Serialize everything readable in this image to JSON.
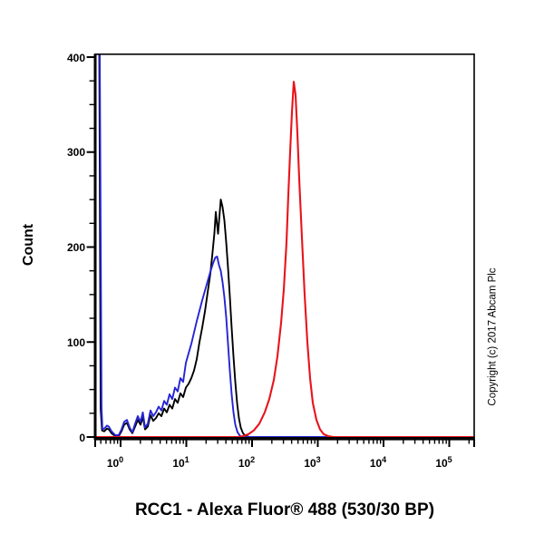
{
  "figure": {
    "title": "RCC1 - Alexa Fluor® 488 (530/30 BP)",
    "y_axis_label": "Count",
    "copyright": "Copyright (c) 2017 Abcam Plc"
  },
  "chart_data": {
    "type": "line",
    "subtype": "flow-cytometry-histogram",
    "title": "RCC1 - Alexa Fluor® 488 (530/30 BP)",
    "xlabel": "RCC1 - Alexa Fluor® 488 (530/30 BP)",
    "ylabel": "Count",
    "x_scale": "log10",
    "grid": false,
    "legend": false,
    "x_axis": {
      "tick_base": "10",
      "tick_exponents": [
        0,
        1,
        2,
        3,
        4,
        5
      ],
      "range_log10": [
        -0.386,
        5.379
      ]
    },
    "y_axis": {
      "ticks": [
        0,
        100,
        200,
        300,
        400
      ],
      "minor_step": 25,
      "range": [
        0,
        403
      ]
    },
    "series": [
      {
        "name": "black",
        "color": "#000000",
        "stroke_width": 1.9,
        "points_log10x_count": [
          [
            -0.324,
            410
          ],
          [
            -0.303,
            30
          ],
          [
            -0.283,
            7
          ],
          [
            -0.248,
            6
          ],
          [
            -0.207,
            9
          ],
          [
            -0.179,
            8
          ],
          [
            -0.138,
            4
          ],
          [
            -0.083,
            1
          ],
          [
            -0.028,
            1
          ],
          [
            0.014,
            6
          ],
          [
            0.055,
            13
          ],
          [
            0.097,
            15
          ],
          [
            0.138,
            8
          ],
          [
            0.179,
            4
          ],
          [
            0.221,
            11
          ],
          [
            0.262,
            18
          ],
          [
            0.303,
            13
          ],
          [
            0.338,
            21
          ],
          [
            0.372,
            8
          ],
          [
            0.414,
            11
          ],
          [
            0.455,
            23
          ],
          [
            0.497,
            17
          ],
          [
            0.538,
            20
          ],
          [
            0.579,
            25
          ],
          [
            0.621,
            22
          ],
          [
            0.662,
            30
          ],
          [
            0.703,
            26
          ],
          [
            0.745,
            34
          ],
          [
            0.786,
            30
          ],
          [
            0.828,
            40
          ],
          [
            0.869,
            36
          ],
          [
            0.91,
            46
          ],
          [
            0.952,
            42
          ],
          [
            0.993,
            52
          ],
          [
            1.034,
            56
          ],
          [
            1.076,
            62
          ],
          [
            1.117,
            70
          ],
          [
            1.159,
            82
          ],
          [
            1.2,
            100
          ],
          [
            1.241,
            115
          ],
          [
            1.283,
            132
          ],
          [
            1.324,
            152
          ],
          [
            1.366,
            172
          ],
          [
            1.4,
            195
          ],
          [
            1.428,
            215
          ],
          [
            1.448,
            237
          ],
          [
            1.483,
            214
          ],
          [
            1.524,
            250
          ],
          [
            1.552,
            242
          ],
          [
            1.579,
            228
          ],
          [
            1.607,
            205
          ],
          [
            1.634,
            178
          ],
          [
            1.662,
            148
          ],
          [
            1.69,
            115
          ],
          [
            1.717,
            85
          ],
          [
            1.745,
            58
          ],
          [
            1.772,
            36
          ],
          [
            1.8,
            20
          ],
          [
            1.828,
            10
          ],
          [
            1.862,
            4
          ],
          [
            1.903,
            1
          ],
          [
            1.972,
            0
          ],
          [
            5.379,
            0
          ]
        ]
      },
      {
        "name": "blue",
        "color": "#2424d6",
        "stroke_width": 1.9,
        "points_log10x_count": [
          [
            -0.317,
            410
          ],
          [
            -0.29,
            30
          ],
          [
            -0.276,
            8
          ],
          [
            -0.248,
            9
          ],
          [
            -0.207,
            12
          ],
          [
            -0.179,
            11
          ],
          [
            -0.138,
            6
          ],
          [
            -0.083,
            2
          ],
          [
            -0.028,
            2
          ],
          [
            0.014,
            8
          ],
          [
            0.055,
            16
          ],
          [
            0.097,
            18
          ],
          [
            0.138,
            10
          ],
          [
            0.179,
            5
          ],
          [
            0.221,
            14
          ],
          [
            0.262,
            22
          ],
          [
            0.303,
            16
          ],
          [
            0.338,
            26
          ],
          [
            0.372,
            10
          ],
          [
            0.414,
            14
          ],
          [
            0.455,
            28
          ],
          [
            0.497,
            22
          ],
          [
            0.538,
            26
          ],
          [
            0.579,
            32
          ],
          [
            0.621,
            28
          ],
          [
            0.662,
            38
          ],
          [
            0.703,
            34
          ],
          [
            0.745,
            45
          ],
          [
            0.786,
            40
          ],
          [
            0.828,
            52
          ],
          [
            0.869,
            48
          ],
          [
            0.91,
            62
          ],
          [
            0.952,
            58
          ],
          [
            0.993,
            78
          ],
          [
            1.034,
            88
          ],
          [
            1.076,
            98
          ],
          [
            1.117,
            110
          ],
          [
            1.159,
            122
          ],
          [
            1.2,
            133
          ],
          [
            1.241,
            144
          ],
          [
            1.283,
            154
          ],
          [
            1.324,
            164
          ],
          [
            1.366,
            174
          ],
          [
            1.407,
            183
          ],
          [
            1.441,
            189
          ],
          [
            1.469,
            190
          ],
          [
            1.497,
            181
          ],
          [
            1.524,
            175
          ],
          [
            1.552,
            163
          ],
          [
            1.579,
            147
          ],
          [
            1.607,
            126
          ],
          [
            1.634,
            98
          ],
          [
            1.662,
            70
          ],
          [
            1.69,
            45
          ],
          [
            1.717,
            26
          ],
          [
            1.745,
            13
          ],
          [
            1.779,
            5
          ],
          [
            1.821,
            1
          ],
          [
            1.876,
            0
          ],
          [
            5.379,
            0
          ]
        ]
      },
      {
        "name": "red",
        "color": "#e8141b",
        "stroke_width": 2.1,
        "points_log10x_count": [
          [
            -0.379,
            0
          ],
          [
            1.779,
            0
          ],
          [
            1.862,
            1
          ],
          [
            1.945,
            3
          ],
          [
            2.028,
            7
          ],
          [
            2.11,
            14
          ],
          [
            2.193,
            26
          ],
          [
            2.262,
            40
          ],
          [
            2.331,
            60
          ],
          [
            2.386,
            85
          ],
          [
            2.441,
            120
          ],
          [
            2.483,
            155
          ],
          [
            2.524,
            205
          ],
          [
            2.552,
            255
          ],
          [
            2.579,
            300
          ],
          [
            2.607,
            342
          ],
          [
            2.634,
            374
          ],
          [
            2.662,
            360
          ],
          [
            2.69,
            320
          ],
          [
            2.717,
            272
          ],
          [
            2.759,
            210
          ],
          [
            2.8,
            150
          ],
          [
            2.841,
            100
          ],
          [
            2.883,
            62
          ],
          [
            2.924,
            36
          ],
          [
            2.979,
            18
          ],
          [
            3.034,
            8
          ],
          [
            3.09,
            3
          ],
          [
            3.159,
            1
          ],
          [
            3.241,
            0
          ],
          [
            5.379,
            0
          ]
        ]
      }
    ]
  }
}
